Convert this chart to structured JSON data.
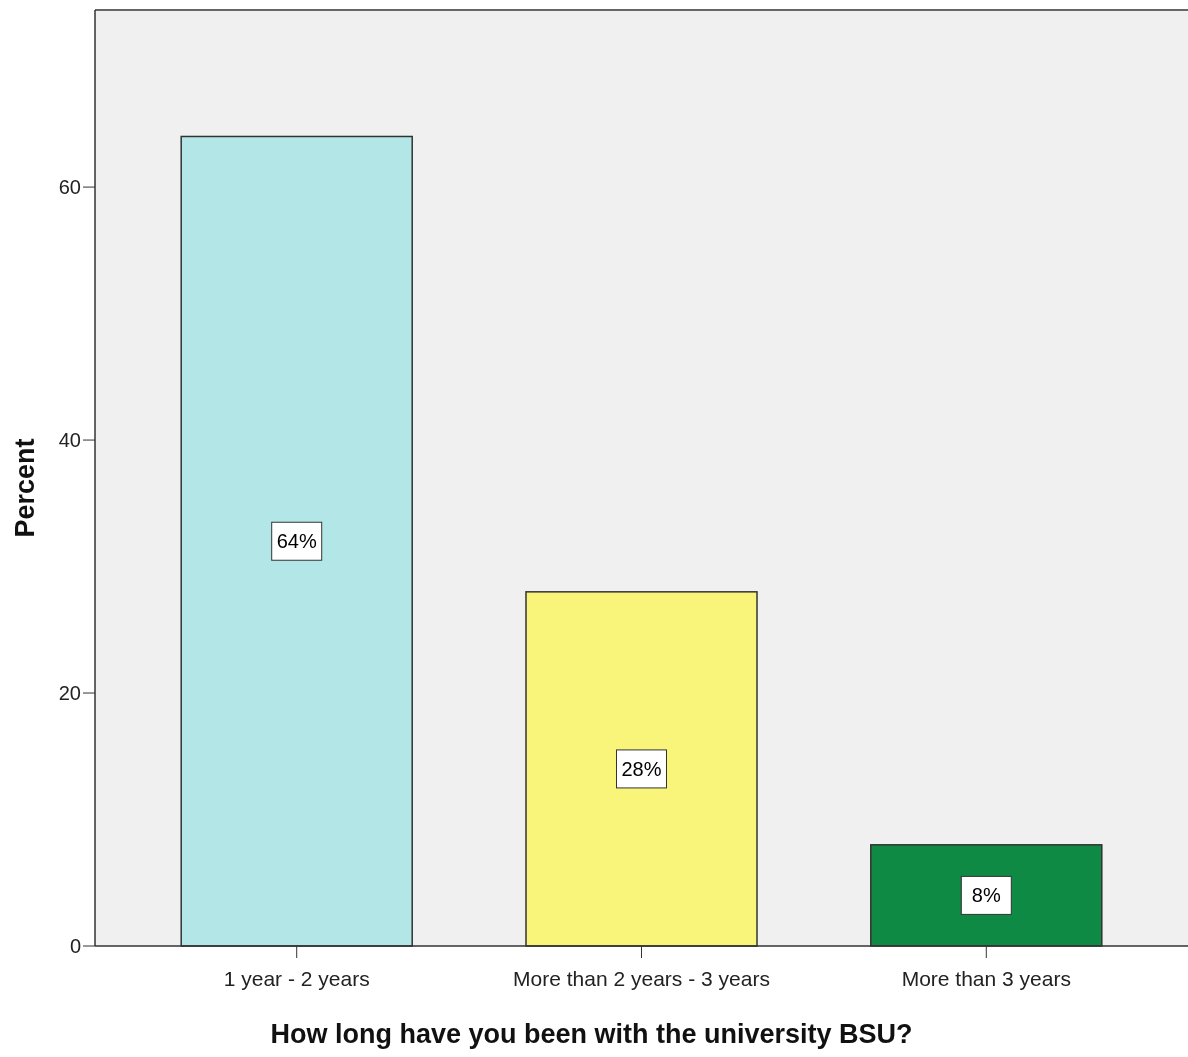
{
  "chart_data": {
    "type": "bar",
    "xlabel": "How long have you been with the university BSU?",
    "ylabel": "Percent",
    "categories": [
      "1 year - 2 years",
      "More than 2 years - 3 years",
      "More than 3 years"
    ],
    "values": [
      64,
      28,
      8
    ],
    "colors": [
      "#b3e6e6",
      "#f9f57a",
      "#0f8a44"
    ],
    "value_labels": [
      "64%",
      "28%",
      "8%"
    ],
    "ylim": [
      0,
      74
    ],
    "yticks": [
      0,
      20,
      40,
      60
    ]
  }
}
